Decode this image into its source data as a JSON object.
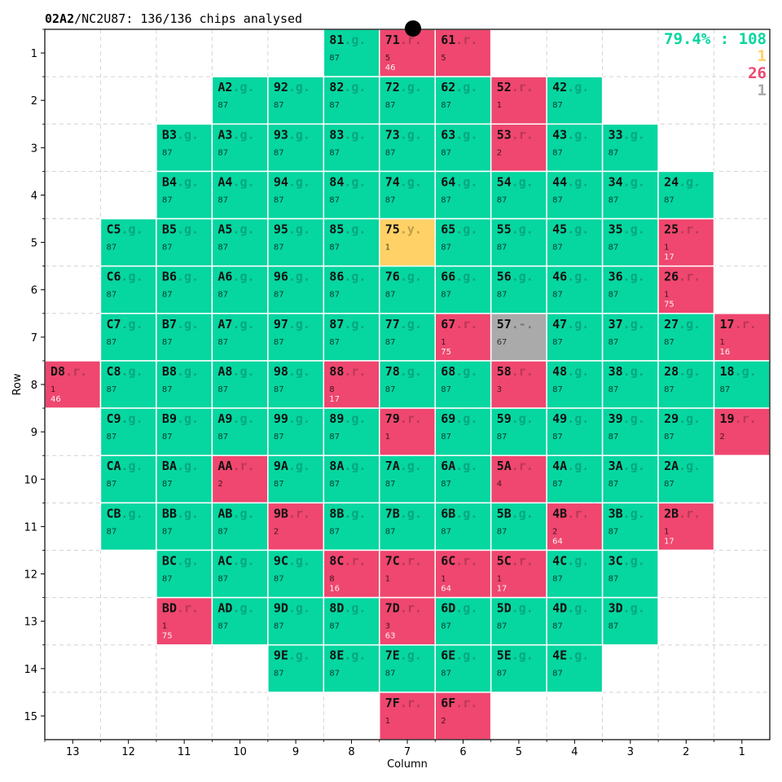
{
  "header": {
    "wafer_id": "02A2",
    "lot": "/NC2U87:",
    "summary": "136/136 chips analysed"
  },
  "stats": {
    "yield_text": "79.4% : 108",
    "yellow_count": "1",
    "red_count": "26",
    "grey_count": "1"
  },
  "colors": {
    "g": "#06d6a0",
    "r": "#ef476f",
    "y": "#ffd166",
    "grey": "#aaaaaa"
  },
  "chart_data": {
    "type": "heatmap",
    "xlabel": "Column",
    "ylabel": "Row",
    "x_ticks": [
      "13",
      "12",
      "11",
      "10",
      "9",
      "8",
      "7",
      "6",
      "5",
      "4",
      "3",
      "2",
      "1"
    ],
    "y_ticks": [
      "1",
      "2",
      "3",
      "4",
      "5",
      "6",
      "7",
      "8",
      "9",
      "10",
      "11",
      "12",
      "13",
      "14",
      "15"
    ],
    "chips": [
      {
        "id": "81",
        "row": 1,
        "col": 8,
        "s": "g",
        "a": "87",
        "b": ""
      },
      {
        "id": "71",
        "row": 1,
        "col": 7,
        "s": "r",
        "a": "5",
        "b": "46"
      },
      {
        "id": "61",
        "row": 1,
        "col": 6,
        "s": "r",
        "a": "5",
        "b": ""
      },
      {
        "id": "A2",
        "row": 2,
        "col": 10,
        "s": "g",
        "a": "87",
        "b": ""
      },
      {
        "id": "92",
        "row": 2,
        "col": 9,
        "s": "g",
        "a": "87",
        "b": ""
      },
      {
        "id": "82",
        "row": 2,
        "col": 8,
        "s": "g",
        "a": "87",
        "b": ""
      },
      {
        "id": "72",
        "row": 2,
        "col": 7,
        "s": "g",
        "a": "87",
        "b": ""
      },
      {
        "id": "62",
        "row": 2,
        "col": 6,
        "s": "g",
        "a": "87",
        "b": ""
      },
      {
        "id": "52",
        "row": 2,
        "col": 5,
        "s": "r",
        "a": "1",
        "b": ""
      },
      {
        "id": "42",
        "row": 2,
        "col": 4,
        "s": "g",
        "a": "87",
        "b": ""
      },
      {
        "id": "B3",
        "row": 3,
        "col": 11,
        "s": "g",
        "a": "87",
        "b": ""
      },
      {
        "id": "A3",
        "row": 3,
        "col": 10,
        "s": "g",
        "a": "87",
        "b": ""
      },
      {
        "id": "93",
        "row": 3,
        "col": 9,
        "s": "g",
        "a": "87",
        "b": ""
      },
      {
        "id": "83",
        "row": 3,
        "col": 8,
        "s": "g",
        "a": "87",
        "b": ""
      },
      {
        "id": "73",
        "row": 3,
        "col": 7,
        "s": "g",
        "a": "87",
        "b": ""
      },
      {
        "id": "63",
        "row": 3,
        "col": 6,
        "s": "g",
        "a": "87",
        "b": ""
      },
      {
        "id": "53",
        "row": 3,
        "col": 5,
        "s": "r",
        "a": "2",
        "b": ""
      },
      {
        "id": "43",
        "row": 3,
        "col": 4,
        "s": "g",
        "a": "87",
        "b": ""
      },
      {
        "id": "33",
        "row": 3,
        "col": 3,
        "s": "g",
        "a": "87",
        "b": ""
      },
      {
        "id": "B4",
        "row": 4,
        "col": 11,
        "s": "g",
        "a": "87",
        "b": ""
      },
      {
        "id": "A4",
        "row": 4,
        "col": 10,
        "s": "g",
        "a": "87",
        "b": ""
      },
      {
        "id": "94",
        "row": 4,
        "col": 9,
        "s": "g",
        "a": "87",
        "b": ""
      },
      {
        "id": "84",
        "row": 4,
        "col": 8,
        "s": "g",
        "a": "87",
        "b": ""
      },
      {
        "id": "74",
        "row": 4,
        "col": 7,
        "s": "g",
        "a": "87",
        "b": ""
      },
      {
        "id": "64",
        "row": 4,
        "col": 6,
        "s": "g",
        "a": "87",
        "b": ""
      },
      {
        "id": "54",
        "row": 4,
        "col": 5,
        "s": "g",
        "a": "87",
        "b": ""
      },
      {
        "id": "44",
        "row": 4,
        "col": 4,
        "s": "g",
        "a": "87",
        "b": ""
      },
      {
        "id": "34",
        "row": 4,
        "col": 3,
        "s": "g",
        "a": "87",
        "b": ""
      },
      {
        "id": "24",
        "row": 4,
        "col": 2,
        "s": "g",
        "a": "87",
        "b": ""
      },
      {
        "id": "C5",
        "row": 5,
        "col": 12,
        "s": "g",
        "a": "87",
        "b": ""
      },
      {
        "id": "B5",
        "row": 5,
        "col": 11,
        "s": "g",
        "a": "87",
        "b": ""
      },
      {
        "id": "A5",
        "row": 5,
        "col": 10,
        "s": "g",
        "a": "87",
        "b": ""
      },
      {
        "id": "95",
        "row": 5,
        "col": 9,
        "s": "g",
        "a": "87",
        "b": ""
      },
      {
        "id": "85",
        "row": 5,
        "col": 8,
        "s": "g",
        "a": "87",
        "b": ""
      },
      {
        "id": "75",
        "row": 5,
        "col": 7,
        "s": "y",
        "a": "1",
        "b": ""
      },
      {
        "id": "65",
        "row": 5,
        "col": 6,
        "s": "g",
        "a": "87",
        "b": ""
      },
      {
        "id": "55",
        "row": 5,
        "col": 5,
        "s": "g",
        "a": "87",
        "b": ""
      },
      {
        "id": "45",
        "row": 5,
        "col": 4,
        "s": "g",
        "a": "87",
        "b": ""
      },
      {
        "id": "35",
        "row": 5,
        "col": 3,
        "s": "g",
        "a": "87",
        "b": ""
      },
      {
        "id": "25",
        "row": 5,
        "col": 2,
        "s": "r",
        "a": "1",
        "b": "17"
      },
      {
        "id": "C6",
        "row": 6,
        "col": 12,
        "s": "g",
        "a": "87",
        "b": ""
      },
      {
        "id": "B6",
        "row": 6,
        "col": 11,
        "s": "g",
        "a": "87",
        "b": ""
      },
      {
        "id": "A6",
        "row": 6,
        "col": 10,
        "s": "g",
        "a": "87",
        "b": ""
      },
      {
        "id": "96",
        "row": 6,
        "col": 9,
        "s": "g",
        "a": "87",
        "b": ""
      },
      {
        "id": "86",
        "row": 6,
        "col": 8,
        "s": "g",
        "a": "87",
        "b": ""
      },
      {
        "id": "76",
        "row": 6,
        "col": 7,
        "s": "g",
        "a": "87",
        "b": ""
      },
      {
        "id": "66",
        "row": 6,
        "col": 6,
        "s": "g",
        "a": "87",
        "b": ""
      },
      {
        "id": "56",
        "row": 6,
        "col": 5,
        "s": "g",
        "a": "87",
        "b": ""
      },
      {
        "id": "46",
        "row": 6,
        "col": 4,
        "s": "g",
        "a": "87",
        "b": ""
      },
      {
        "id": "36",
        "row": 6,
        "col": 3,
        "s": "g",
        "a": "87",
        "b": ""
      },
      {
        "id": "26",
        "row": 6,
        "col": 2,
        "s": "r",
        "a": "1",
        "b": "75"
      },
      {
        "id": "C7",
        "row": 7,
        "col": 12,
        "s": "g",
        "a": "87",
        "b": ""
      },
      {
        "id": "B7",
        "row": 7,
        "col": 11,
        "s": "g",
        "a": "87",
        "b": ""
      },
      {
        "id": "A7",
        "row": 7,
        "col": 10,
        "s": "g",
        "a": "87",
        "b": ""
      },
      {
        "id": "97",
        "row": 7,
        "col": 9,
        "s": "g",
        "a": "87",
        "b": ""
      },
      {
        "id": "87",
        "row": 7,
        "col": 8,
        "s": "g",
        "a": "87",
        "b": ""
      },
      {
        "id": "77",
        "row": 7,
        "col": 7,
        "s": "g",
        "a": "87",
        "b": ""
      },
      {
        "id": "67",
        "row": 7,
        "col": 6,
        "s": "r",
        "a": "1",
        "b": "75"
      },
      {
        "id": "57",
        "row": 7,
        "col": 5,
        "s": "grey",
        "a": "67",
        "b": ""
      },
      {
        "id": "47",
        "row": 7,
        "col": 4,
        "s": "g",
        "a": "87",
        "b": ""
      },
      {
        "id": "37",
        "row": 7,
        "col": 3,
        "s": "g",
        "a": "87",
        "b": ""
      },
      {
        "id": "27",
        "row": 7,
        "col": 2,
        "s": "g",
        "a": "87",
        "b": ""
      },
      {
        "id": "17",
        "row": 7,
        "col": 1,
        "s": "r",
        "a": "1",
        "b": "16"
      },
      {
        "id": "D8",
        "row": 8,
        "col": 13,
        "s": "r",
        "a": "1",
        "b": "46"
      },
      {
        "id": "C8",
        "row": 8,
        "col": 12,
        "s": "g",
        "a": "87",
        "b": ""
      },
      {
        "id": "B8",
        "row": 8,
        "col": 11,
        "s": "g",
        "a": "87",
        "b": ""
      },
      {
        "id": "A8",
        "row": 8,
        "col": 10,
        "s": "g",
        "a": "87",
        "b": ""
      },
      {
        "id": "98",
        "row": 8,
        "col": 9,
        "s": "g",
        "a": "87",
        "b": ""
      },
      {
        "id": "88",
        "row": 8,
        "col": 8,
        "s": "r",
        "a": "8",
        "b": "17"
      },
      {
        "id": "78",
        "row": 8,
        "col": 7,
        "s": "g",
        "a": "87",
        "b": ""
      },
      {
        "id": "68",
        "row": 8,
        "col": 6,
        "s": "g",
        "a": "87",
        "b": ""
      },
      {
        "id": "58",
        "row": 8,
        "col": 5,
        "s": "r",
        "a": "3",
        "b": ""
      },
      {
        "id": "48",
        "row": 8,
        "col": 4,
        "s": "g",
        "a": "87",
        "b": ""
      },
      {
        "id": "38",
        "row": 8,
        "col": 3,
        "s": "g",
        "a": "87",
        "b": ""
      },
      {
        "id": "28",
        "row": 8,
        "col": 2,
        "s": "g",
        "a": "87",
        "b": ""
      },
      {
        "id": "18",
        "row": 8,
        "col": 1,
        "s": "g",
        "a": "87",
        "b": ""
      },
      {
        "id": "C9",
        "row": 9,
        "col": 12,
        "s": "g",
        "a": "87",
        "b": ""
      },
      {
        "id": "B9",
        "row": 9,
        "col": 11,
        "s": "g",
        "a": "87",
        "b": ""
      },
      {
        "id": "A9",
        "row": 9,
        "col": 10,
        "s": "g",
        "a": "87",
        "b": ""
      },
      {
        "id": "99",
        "row": 9,
        "col": 9,
        "s": "g",
        "a": "87",
        "b": ""
      },
      {
        "id": "89",
        "row": 9,
        "col": 8,
        "s": "g",
        "a": "87",
        "b": ""
      },
      {
        "id": "79",
        "row": 9,
        "col": 7,
        "s": "r",
        "a": "1",
        "b": ""
      },
      {
        "id": "69",
        "row": 9,
        "col": 6,
        "s": "g",
        "a": "87",
        "b": ""
      },
      {
        "id": "59",
        "row": 9,
        "col": 5,
        "s": "g",
        "a": "87",
        "b": ""
      },
      {
        "id": "49",
        "row": 9,
        "col": 4,
        "s": "g",
        "a": "87",
        "b": ""
      },
      {
        "id": "39",
        "row": 9,
        "col": 3,
        "s": "g",
        "a": "87",
        "b": ""
      },
      {
        "id": "29",
        "row": 9,
        "col": 2,
        "s": "g",
        "a": "87",
        "b": ""
      },
      {
        "id": "19",
        "row": 9,
        "col": 1,
        "s": "r",
        "a": "2",
        "b": ""
      },
      {
        "id": "CA",
        "row": 10,
        "col": 12,
        "s": "g",
        "a": "87",
        "b": ""
      },
      {
        "id": "BA",
        "row": 10,
        "col": 11,
        "s": "g",
        "a": "87",
        "b": ""
      },
      {
        "id": "AA",
        "row": 10,
        "col": 10,
        "s": "r",
        "a": "2",
        "b": ""
      },
      {
        "id": "9A",
        "row": 10,
        "col": 9,
        "s": "g",
        "a": "87",
        "b": ""
      },
      {
        "id": "8A",
        "row": 10,
        "col": 8,
        "s": "g",
        "a": "87",
        "b": ""
      },
      {
        "id": "7A",
        "row": 10,
        "col": 7,
        "s": "g",
        "a": "87",
        "b": ""
      },
      {
        "id": "6A",
        "row": 10,
        "col": 6,
        "s": "g",
        "a": "87",
        "b": ""
      },
      {
        "id": "5A",
        "row": 10,
        "col": 5,
        "s": "r",
        "a": "4",
        "b": ""
      },
      {
        "id": "4A",
        "row": 10,
        "col": 4,
        "s": "g",
        "a": "87",
        "b": ""
      },
      {
        "id": "3A",
        "row": 10,
        "col": 3,
        "s": "g",
        "a": "87",
        "b": ""
      },
      {
        "id": "2A",
        "row": 10,
        "col": 2,
        "s": "g",
        "a": "87",
        "b": ""
      },
      {
        "id": "CB",
        "row": 11,
        "col": 12,
        "s": "g",
        "a": "87",
        "b": ""
      },
      {
        "id": "BB",
        "row": 11,
        "col": 11,
        "s": "g",
        "a": "87",
        "b": ""
      },
      {
        "id": "AB",
        "row": 11,
        "col": 10,
        "s": "g",
        "a": "87",
        "b": ""
      },
      {
        "id": "9B",
        "row": 11,
        "col": 9,
        "s": "r",
        "a": "2",
        "b": ""
      },
      {
        "id": "8B",
        "row": 11,
        "col": 8,
        "s": "g",
        "a": "87",
        "b": ""
      },
      {
        "id": "7B",
        "row": 11,
        "col": 7,
        "s": "g",
        "a": "87",
        "b": ""
      },
      {
        "id": "6B",
        "row": 11,
        "col": 6,
        "s": "g",
        "a": "87",
        "b": ""
      },
      {
        "id": "5B",
        "row": 11,
        "col": 5,
        "s": "g",
        "a": "87",
        "b": ""
      },
      {
        "id": "4B",
        "row": 11,
        "col": 4,
        "s": "r",
        "a": "2",
        "b": "64"
      },
      {
        "id": "3B",
        "row": 11,
        "col": 3,
        "s": "g",
        "a": "87",
        "b": ""
      },
      {
        "id": "2B",
        "row": 11,
        "col": 2,
        "s": "r",
        "a": "1",
        "b": "17"
      },
      {
        "id": "BC",
        "row": 12,
        "col": 11,
        "s": "g",
        "a": "87",
        "b": ""
      },
      {
        "id": "AC",
        "row": 12,
        "col": 10,
        "s": "g",
        "a": "87",
        "b": ""
      },
      {
        "id": "9C",
        "row": 12,
        "col": 9,
        "s": "g",
        "a": "87",
        "b": ""
      },
      {
        "id": "8C",
        "row": 12,
        "col": 8,
        "s": "r",
        "a": "8",
        "b": "16"
      },
      {
        "id": "7C",
        "row": 12,
        "col": 7,
        "s": "r",
        "a": "1",
        "b": ""
      },
      {
        "id": "6C",
        "row": 12,
        "col": 6,
        "s": "r",
        "a": "1",
        "b": "64"
      },
      {
        "id": "5C",
        "row": 12,
        "col": 5,
        "s": "r",
        "a": "1",
        "b": "17"
      },
      {
        "id": "4C",
        "row": 12,
        "col": 4,
        "s": "g",
        "a": "87",
        "b": ""
      },
      {
        "id": "3C",
        "row": 12,
        "col": 3,
        "s": "g",
        "a": "87",
        "b": ""
      },
      {
        "id": "BD",
        "row": 13,
        "col": 11,
        "s": "r",
        "a": "1",
        "b": "75"
      },
      {
        "id": "AD",
        "row": 13,
        "col": 10,
        "s": "g",
        "a": "87",
        "b": ""
      },
      {
        "id": "9D",
        "row": 13,
        "col": 9,
        "s": "g",
        "a": "87",
        "b": ""
      },
      {
        "id": "8D",
        "row": 13,
        "col": 8,
        "s": "g",
        "a": "87",
        "b": ""
      },
      {
        "id": "7D",
        "row": 13,
        "col": 7,
        "s": "r",
        "a": "3",
        "b": "63"
      },
      {
        "id": "6D",
        "row": 13,
        "col": 6,
        "s": "g",
        "a": "87",
        "b": ""
      },
      {
        "id": "5D",
        "row": 13,
        "col": 5,
        "s": "g",
        "a": "87",
        "b": ""
      },
      {
        "id": "4D",
        "row": 13,
        "col": 4,
        "s": "g",
        "a": "87",
        "b": ""
      },
      {
        "id": "3D",
        "row": 13,
        "col": 3,
        "s": "g",
        "a": "87",
        "b": ""
      },
      {
        "id": "9E",
        "row": 14,
        "col": 9,
        "s": "g",
        "a": "87",
        "b": ""
      },
      {
        "id": "8E",
        "row": 14,
        "col": 8,
        "s": "g",
        "a": "87",
        "b": ""
      },
      {
        "id": "7E",
        "row": 14,
        "col": 7,
        "s": "g",
        "a": "87",
        "b": ""
      },
      {
        "id": "6E",
        "row": 14,
        "col": 6,
        "s": "g",
        "a": "87",
        "b": ""
      },
      {
        "id": "5E",
        "row": 14,
        "col": 5,
        "s": "g",
        "a": "87",
        "b": ""
      },
      {
        "id": "4E",
        "row": 14,
        "col": 4,
        "s": "g",
        "a": "87",
        "b": ""
      },
      {
        "id": "7F",
        "row": 15,
        "col": 7,
        "s": "r",
        "a": "1",
        "b": ""
      },
      {
        "id": "6F",
        "row": 15,
        "col": 6,
        "s": "r",
        "a": "2",
        "b": ""
      }
    ]
  }
}
